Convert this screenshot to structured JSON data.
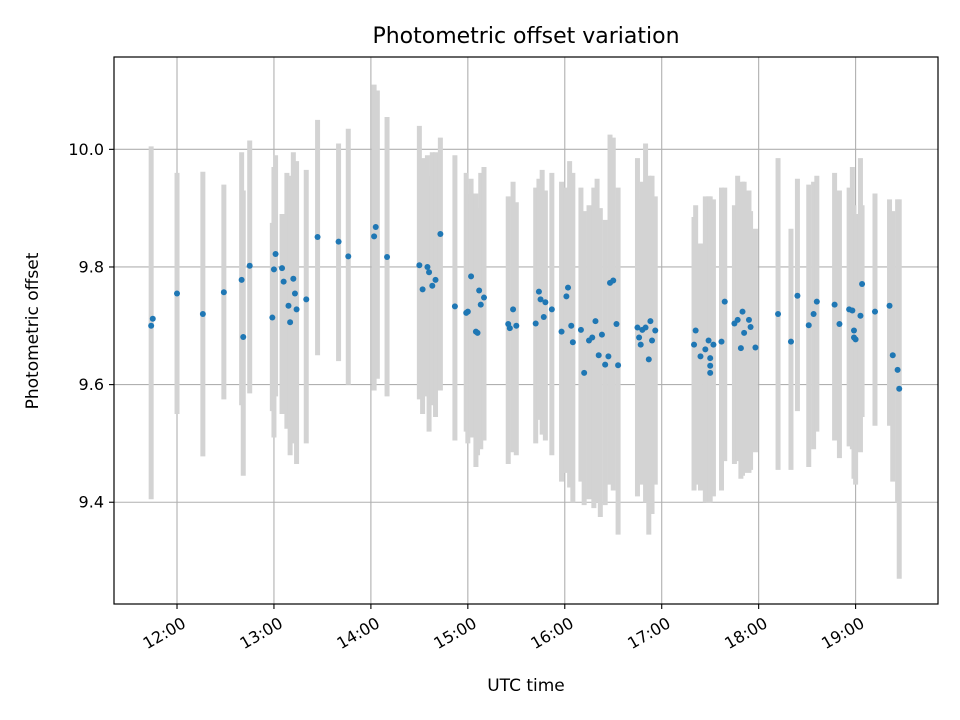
{
  "chart_data": {
    "type": "scatter",
    "title": "Photometric offset variation",
    "xlabel": "UTC time",
    "ylabel": "Photometric offset",
    "xlim": [
      "11:21",
      "19:51"
    ],
    "ylim": [
      9.227,
      10.157
    ],
    "xticks": [
      "12:00",
      "13:00",
      "14:00",
      "15:00",
      "16:00",
      "17:00",
      "18:00",
      "19:00"
    ],
    "yticks": [
      "9.4",
      "9.6",
      "9.8",
      "10.0"
    ],
    "grid": true,
    "legend": "none",
    "colors": {
      "points": "#1f77b4",
      "errorbars": "#d3d3d3",
      "grid": "#b0b0b0"
    },
    "error_bar_halfwidth": 0.3,
    "points": [
      {
        "x": "11:44",
        "y": 9.7
      },
      {
        "x": "11:45",
        "y": 9.712
      },
      {
        "x": "12:00",
        "y": 9.755
      },
      {
        "x": "12:16",
        "y": 9.72
      },
      {
        "x": "12:29",
        "y": 9.757
      },
      {
        "x": "12:40",
        "y": 9.778
      },
      {
        "x": "12:41",
        "y": 9.681
      },
      {
        "x": "12:45",
        "y": 9.802
      },
      {
        "x": "12:59",
        "y": 9.714
      },
      {
        "x": "13:00",
        "y": 9.796
      },
      {
        "x": "13:01",
        "y": 9.822
      },
      {
        "x": "13:05",
        "y": 9.798
      },
      {
        "x": "13:06",
        "y": 9.775
      },
      {
        "x": "13:09",
        "y": 9.734
      },
      {
        "x": "13:10",
        "y": 9.706
      },
      {
        "x": "13:12",
        "y": 9.78
      },
      {
        "x": "13:13",
        "y": 9.755
      },
      {
        "x": "13:14",
        "y": 9.728
      },
      {
        "x": "13:20",
        "y": 9.745
      },
      {
        "x": "13:27",
        "y": 9.851
      },
      {
        "x": "13:40",
        "y": 9.843
      },
      {
        "x": "13:46",
        "y": 9.818
      },
      {
        "x": "14:02",
        "y": 9.852
      },
      {
        "x": "14:03",
        "y": 9.868
      },
      {
        "x": "14:10",
        "y": 9.817
      },
      {
        "x": "14:30",
        "y": 9.803
      },
      {
        "x": "14:32",
        "y": 9.762
      },
      {
        "x": "14:35",
        "y": 9.8
      },
      {
        "x": "14:36",
        "y": 9.791
      },
      {
        "x": "14:38",
        "y": 9.768
      },
      {
        "x": "14:40",
        "y": 9.778
      },
      {
        "x": "14:43",
        "y": 9.856
      },
      {
        "x": "14:52",
        "y": 9.733
      },
      {
        "x": "14:59",
        "y": 9.722
      },
      {
        "x": "15:00",
        "y": 9.724
      },
      {
        "x": "15:02",
        "y": 9.784
      },
      {
        "x": "15:05",
        "y": 9.69
      },
      {
        "x": "15:06",
        "y": 9.688
      },
      {
        "x": "15:07",
        "y": 9.76
      },
      {
        "x": "15:08",
        "y": 9.736
      },
      {
        "x": "15:10",
        "y": 9.748
      },
      {
        "x": "15:25",
        "y": 9.703
      },
      {
        "x": "15:26",
        "y": 9.696
      },
      {
        "x": "15:28",
        "y": 9.728
      },
      {
        "x": "15:30",
        "y": 9.7
      },
      {
        "x": "15:42",
        "y": 9.704
      },
      {
        "x": "15:44",
        "y": 9.758
      },
      {
        "x": "15:45",
        "y": 9.745
      },
      {
        "x": "15:47",
        "y": 9.715
      },
      {
        "x": "15:48",
        "y": 9.74
      },
      {
        "x": "15:52",
        "y": 9.728
      },
      {
        "x": "15:58",
        "y": 9.69
      },
      {
        "x": "16:01",
        "y": 9.75
      },
      {
        "x": "16:02",
        "y": 9.765
      },
      {
        "x": "16:04",
        "y": 9.7
      },
      {
        "x": "16:05",
        "y": 9.672
      },
      {
        "x": "16:10",
        "y": 9.693
      },
      {
        "x": "16:12",
        "y": 9.62
      },
      {
        "x": "16:15",
        "y": 9.675
      },
      {
        "x": "16:17",
        "y": 9.68
      },
      {
        "x": "16:19",
        "y": 9.708
      },
      {
        "x": "16:21",
        "y": 9.65
      },
      {
        "x": "16:23",
        "y": 9.685
      },
      {
        "x": "16:25",
        "y": 9.634
      },
      {
        "x": "16:27",
        "y": 9.648
      },
      {
        "x": "16:28",
        "y": 9.773
      },
      {
        "x": "16:30",
        "y": 9.777
      },
      {
        "x": "16:32",
        "y": 9.703
      },
      {
        "x": "16:33",
        "y": 9.633
      },
      {
        "x": "16:45",
        "y": 9.697
      },
      {
        "x": "16:46",
        "y": 9.68
      },
      {
        "x": "16:47",
        "y": 9.668
      },
      {
        "x": "16:48",
        "y": 9.693
      },
      {
        "x": "16:50",
        "y": 9.697
      },
      {
        "x": "16:52",
        "y": 9.643
      },
      {
        "x": "16:53",
        "y": 9.708
      },
      {
        "x": "16:54",
        "y": 9.675
      },
      {
        "x": "16:56",
        "y": 9.692
      },
      {
        "x": "17:20",
        "y": 9.668
      },
      {
        "x": "17:21",
        "y": 9.692
      },
      {
        "x": "17:24",
        "y": 9.648
      },
      {
        "x": "17:27",
        "y": 9.66
      },
      {
        "x": "17:29",
        "y": 9.675
      },
      {
        "x": "17:30",
        "y": 9.645
      },
      {
        "x": "17:30",
        "y": 9.632
      },
      {
        "x": "17:30",
        "y": 9.62
      },
      {
        "x": "17:32",
        "y": 9.668
      },
      {
        "x": "17:37",
        "y": 9.673
      },
      {
        "x": "17:39",
        "y": 9.741
      },
      {
        "x": "17:45",
        "y": 9.704
      },
      {
        "x": "17:47",
        "y": 9.71
      },
      {
        "x": "17:49",
        "y": 9.662
      },
      {
        "x": "17:50",
        "y": 9.724
      },
      {
        "x": "17:51",
        "y": 9.688
      },
      {
        "x": "17:54",
        "y": 9.71
      },
      {
        "x": "17:55",
        "y": 9.698
      },
      {
        "x": "17:58",
        "y": 9.663
      },
      {
        "x": "18:12",
        "y": 9.72
      },
      {
        "x": "18:20",
        "y": 9.673
      },
      {
        "x": "18:24",
        "y": 9.751
      },
      {
        "x": "18:31",
        "y": 9.701
      },
      {
        "x": "18:34",
        "y": 9.72
      },
      {
        "x": "18:36",
        "y": 9.741
      },
      {
        "x": "18:47",
        "y": 9.736
      },
      {
        "x": "18:50",
        "y": 9.703
      },
      {
        "x": "18:56",
        "y": 9.728
      },
      {
        "x": "18:58",
        "y": 9.726
      },
      {
        "x": "18:59",
        "y": 9.692
      },
      {
        "x": "18:59",
        "y": 9.68
      },
      {
        "x": "19:00",
        "y": 9.677
      },
      {
        "x": "19:03",
        "y": 9.717
      },
      {
        "x": "19:04",
        "y": 9.771
      },
      {
        "x": "19:12",
        "y": 9.724
      },
      {
        "x": "19:21",
        "y": 9.734
      },
      {
        "x": "19:23",
        "y": 9.65
      },
      {
        "x": "19:26",
        "y": 9.625
      },
      {
        "x": "19:27",
        "y": 9.593
      }
    ],
    "error_bars": [
      {
        "x": "11:44",
        "low": 9.405,
        "high": 10.005
      },
      {
        "x": "12:00",
        "low": 9.55,
        "high": 9.96
      },
      {
        "x": "12:16",
        "low": 9.478,
        "high": 9.962
      },
      {
        "x": "12:29",
        "low": 9.575,
        "high": 9.94
      },
      {
        "x": "12:40",
        "low": 9.565,
        "high": 9.995
      },
      {
        "x": "12:41",
        "low": 9.445,
        "high": 9.93
      },
      {
        "x": "12:45",
        "low": 9.585,
        "high": 10.015
      },
      {
        "x": "12:59",
        "low": 9.555,
        "high": 9.875
      },
      {
        "x": "13:00",
        "low": 9.51,
        "high": 9.97
      },
      {
        "x": "13:01",
        "low": 9.58,
        "high": 9.99
      },
      {
        "x": "13:05",
        "low": 9.55,
        "high": 9.89
      },
      {
        "x": "13:08",
        "low": 9.525,
        "high": 9.96
      },
      {
        "x": "13:10",
        "low": 9.48,
        "high": 9.955
      },
      {
        "x": "13:12",
        "low": 9.5,
        "high": 9.995
      },
      {
        "x": "13:14",
        "low": 9.465,
        "high": 9.98
      },
      {
        "x": "13:20",
        "low": 9.5,
        "high": 9.965
      },
      {
        "x": "13:27",
        "low": 9.65,
        "high": 10.05
      },
      {
        "x": "13:40",
        "low": 9.64,
        "high": 10.01
      },
      {
        "x": "13:46",
        "low": 9.6,
        "high": 10.035
      },
      {
        "x": "14:02",
        "low": 9.59,
        "high": 10.11
      },
      {
        "x": "14:04",
        "low": 9.61,
        "high": 10.1
      },
      {
        "x": "14:10",
        "low": 9.58,
        "high": 10.055
      },
      {
        "x": "14:30",
        "low": 9.575,
        "high": 10.04
      },
      {
        "x": "14:32",
        "low": 9.55,
        "high": 9.985
      },
      {
        "x": "14:35",
        "low": 9.58,
        "high": 9.99
      },
      {
        "x": "14:36",
        "low": 9.52,
        "high": 9.955
      },
      {
        "x": "14:38",
        "low": 9.565,
        "high": 9.995
      },
      {
        "x": "14:40",
        "low": 9.545,
        "high": 9.995
      },
      {
        "x": "14:43",
        "low": 9.59,
        "high": 10.02
      },
      {
        "x": "14:52",
        "low": 9.505,
        "high": 9.99
      },
      {
        "x": "14:59",
        "low": 9.52,
        "high": 9.96
      },
      {
        "x": "15:00",
        "low": 9.5,
        "high": 9.925
      },
      {
        "x": "15:02",
        "low": 9.51,
        "high": 9.95
      },
      {
        "x": "15:05",
        "low": 9.46,
        "high": 9.925
      },
      {
        "x": "15:06",
        "low": 9.48,
        "high": 9.9
      },
      {
        "x": "15:08",
        "low": 9.49,
        "high": 9.96
      },
      {
        "x": "15:10",
        "low": 9.505,
        "high": 9.97
      },
      {
        "x": "15:25",
        "low": 9.465,
        "high": 9.92
      },
      {
        "x": "15:28",
        "low": 9.485,
        "high": 9.945
      },
      {
        "x": "15:30",
        "low": 9.48,
        "high": 9.91
      },
      {
        "x": "15:42",
        "low": 9.5,
        "high": 9.935
      },
      {
        "x": "15:44",
        "low": 9.54,
        "high": 9.95
      },
      {
        "x": "15:46",
        "low": 9.515,
        "high": 9.965
      },
      {
        "x": "15:48",
        "low": 9.505,
        "high": 9.93
      },
      {
        "x": "15:52",
        "low": 9.48,
        "high": 9.96
      },
      {
        "x": "15:58",
        "low": 9.435,
        "high": 9.945
      },
      {
        "x": "16:01",
        "low": 9.45,
        "high": 9.935
      },
      {
        "x": "16:03",
        "low": 9.425,
        "high": 9.98
      },
      {
        "x": "16:05",
        "low": 9.4,
        "high": 9.96
      },
      {
        "x": "16:10",
        "low": 9.435,
        "high": 9.935
      },
      {
        "x": "16:12",
        "low": 9.395,
        "high": 9.895
      },
      {
        "x": "16:15",
        "low": 9.405,
        "high": 9.905
      },
      {
        "x": "16:18",
        "low": 9.39,
        "high": 9.935
      },
      {
        "x": "16:20",
        "low": 9.4,
        "high": 9.95
      },
      {
        "x": "16:22",
        "low": 9.375,
        "high": 9.9
      },
      {
        "x": "16:25",
        "low": 9.395,
        "high": 9.88
      },
      {
        "x": "16:28",
        "low": 9.43,
        "high": 10.025
      },
      {
        "x": "16:30",
        "low": 9.42,
        "high": 10.02
      },
      {
        "x": "16:33",
        "low": 9.345,
        "high": 9.935
      },
      {
        "x": "16:45",
        "low": 9.41,
        "high": 9.985
      },
      {
        "x": "16:47",
        "low": 9.44,
        "high": 9.915
      },
      {
        "x": "16:48",
        "low": 9.43,
        "high": 9.945
      },
      {
        "x": "16:50",
        "low": 9.4,
        "high": 10.01
      },
      {
        "x": "16:52",
        "low": 9.345,
        "high": 9.955
      },
      {
        "x": "16:54",
        "low": 9.38,
        "high": 9.955
      },
      {
        "x": "16:56",
        "low": 9.43,
        "high": 9.92
      },
      {
        "x": "17:20",
        "low": 9.42,
        "high": 9.885
      },
      {
        "x": "17:21",
        "low": 9.43,
        "high": 9.905
      },
      {
        "x": "17:24",
        "low": 9.42,
        "high": 9.84
      },
      {
        "x": "17:27",
        "low": 9.4,
        "high": 9.92
      },
      {
        "x": "17:29",
        "low": 9.4,
        "high": 9.92
      },
      {
        "x": "17:30",
        "low": 9.4,
        "high": 9.92
      },
      {
        "x": "17:32",
        "low": 9.41,
        "high": 9.915
      },
      {
        "x": "17:37",
        "low": 9.42,
        "high": 9.935
      },
      {
        "x": "17:39",
        "low": 9.47,
        "high": 9.935
      },
      {
        "x": "17:45",
        "low": 9.465,
        "high": 9.905
      },
      {
        "x": "17:47",
        "low": 9.47,
        "high": 9.955
      },
      {
        "x": "17:49",
        "low": 9.44,
        "high": 9.925
      },
      {
        "x": "17:50",
        "low": 9.445,
        "high": 9.945
      },
      {
        "x": "17:51",
        "low": 9.45,
        "high": 9.945
      },
      {
        "x": "17:54",
        "low": 9.45,
        "high": 9.93
      },
      {
        "x": "17:55",
        "low": 9.455,
        "high": 9.895
      },
      {
        "x": "17:58",
        "low": 9.485,
        "high": 9.865
      },
      {
        "x": "18:12",
        "low": 9.455,
        "high": 9.985
      },
      {
        "x": "18:20",
        "low": 9.455,
        "high": 9.865
      },
      {
        "x": "18:24",
        "low": 9.555,
        "high": 9.95
      },
      {
        "x": "18:31",
        "low": 9.46,
        "high": 9.94
      },
      {
        "x": "18:34",
        "low": 9.49,
        "high": 9.945
      },
      {
        "x": "18:36",
        "low": 9.52,
        "high": 9.955
      },
      {
        "x": "18:47",
        "low": 9.505,
        "high": 9.96
      },
      {
        "x": "18:50",
        "low": 9.475,
        "high": 9.93
      },
      {
        "x": "18:56",
        "low": 9.495,
        "high": 9.935
      },
      {
        "x": "18:58",
        "low": 9.49,
        "high": 9.97
      },
      {
        "x": "18:59",
        "low": 9.44,
        "high": 9.905
      },
      {
        "x": "19:00",
        "low": 9.43,
        "high": 9.89
      },
      {
        "x": "19:03",
        "low": 9.485,
        "high": 9.985
      },
      {
        "x": "19:04",
        "low": 9.545,
        "high": 9.905
      },
      {
        "x": "19:12",
        "low": 9.53,
        "high": 9.925
      },
      {
        "x": "19:21",
        "low": 9.53,
        "high": 9.915
      },
      {
        "x": "19:23",
        "low": 9.435,
        "high": 9.895
      },
      {
        "x": "19:26",
        "low": 9.4,
        "high": 9.915
      },
      {
        "x": "19:27",
        "low": 9.27,
        "high": 9.915
      }
    ]
  }
}
